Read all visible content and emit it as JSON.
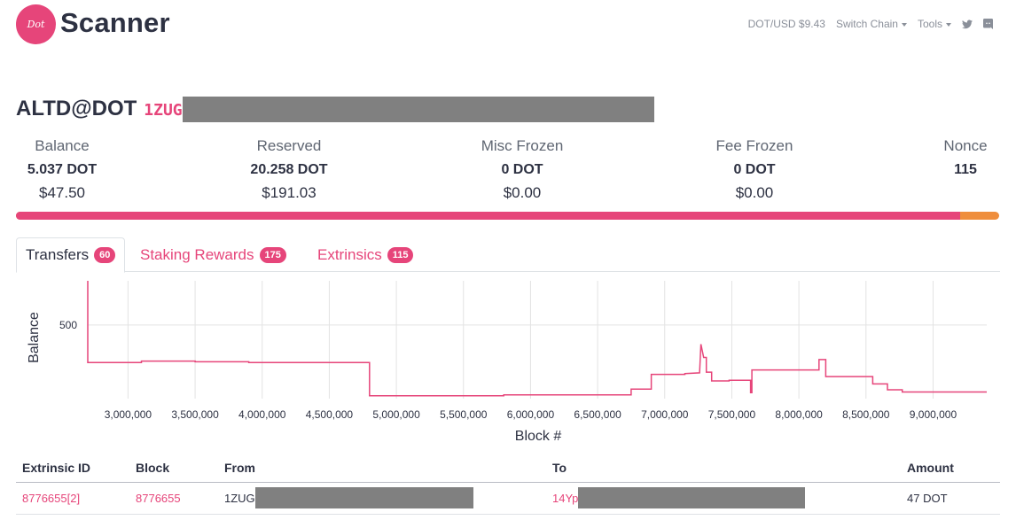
{
  "header": {
    "logo_badge": "Dot",
    "logo_text": "Scanner",
    "price": "DOT/USD $9.43",
    "switch_chain": "Switch Chain",
    "tools": "Tools"
  },
  "account": {
    "name": "ALTD@DOT",
    "address_prefix": "1ZUG"
  },
  "stats": [
    {
      "label": "Balance",
      "value": "5.037 DOT",
      "usd": "$47.50"
    },
    {
      "label": "Reserved",
      "value": "20.258 DOT",
      "usd": "$191.03"
    },
    {
      "label": "Misc Frozen",
      "value": "0 DOT",
      "usd": "$0.00"
    },
    {
      "label": "Fee Frozen",
      "value": "0 DOT",
      "usd": "$0.00"
    },
    {
      "label": "Nonce",
      "value": "115",
      "usd": ""
    }
  ],
  "balance_bar": {
    "primary_fraction": 0.96,
    "primary_color": "#e6457a",
    "secondary_color": "#ef8e3c"
  },
  "tabs": [
    {
      "label": "Transfers",
      "count": "60",
      "active": true
    },
    {
      "label": "Staking Rewards",
      "count": "175",
      "active": false
    },
    {
      "label": "Extrinsics",
      "count": "115",
      "active": false
    }
  ],
  "chart_data": {
    "type": "line",
    "xlabel": "Block #",
    "ylabel": "Balance",
    "xlim": [
      2700000,
      9400000
    ],
    "ylim": [
      0,
      800
    ],
    "x_ticks": [
      3000000,
      3500000,
      4000000,
      4500000,
      5000000,
      5500000,
      6000000,
      6500000,
      7000000,
      7500000,
      8000000,
      8500000,
      9000000
    ],
    "x_tick_labels": [
      "3,000,000",
      "3,500,000",
      "4,000,000",
      "4,500,000",
      "5,000,000",
      "5,500,000",
      "6,000,000",
      "6,500,000",
      "7,000,000",
      "7,500,000",
      "8,000,000",
      "8,500,000",
      "9,000,000"
    ],
    "y_ticks": [
      500
    ],
    "y_tick_labels": [
      "500"
    ],
    "line_color": "#e6457a",
    "series": [
      {
        "x": [
          2700000,
          2700000,
          3100000,
          3100000,
          3500000,
          3500000,
          3900000,
          3900000,
          4800000,
          4800000,
          5800000,
          5800000,
          6750000,
          6750000,
          6900000,
          6900000,
          7150000,
          7150000,
          7260000,
          7270000,
          7290000,
          7310000,
          7310000,
          7350000,
          7350000,
          7480000,
          7480000,
          7640000,
          7640000,
          7650000,
          7650000,
          8150000,
          8150000,
          8200000,
          8200000,
          8550000,
          8550000,
          8660000,
          8660000,
          8770000,
          8770000,
          9400000
        ],
        "y": [
          800,
          245,
          245,
          255,
          255,
          250,
          250,
          245,
          245,
          20,
          20,
          25,
          25,
          65,
          65,
          165,
          165,
          170,
          175,
          370,
          280,
          280,
          180,
          180,
          120,
          120,
          125,
          125,
          40,
          40,
          195,
          195,
          265,
          265,
          150,
          150,
          100,
          100,
          60,
          60,
          45,
          45
        ]
      }
    ]
  },
  "table": {
    "headers": [
      "Extrinsic ID",
      "Block",
      "From",
      "To",
      "Amount"
    ],
    "rows": [
      {
        "extrinsic_id": "8776655[2]",
        "block": "8776655",
        "from": "1ZUG",
        "to": "14Yp",
        "amount": "47 DOT"
      }
    ]
  }
}
